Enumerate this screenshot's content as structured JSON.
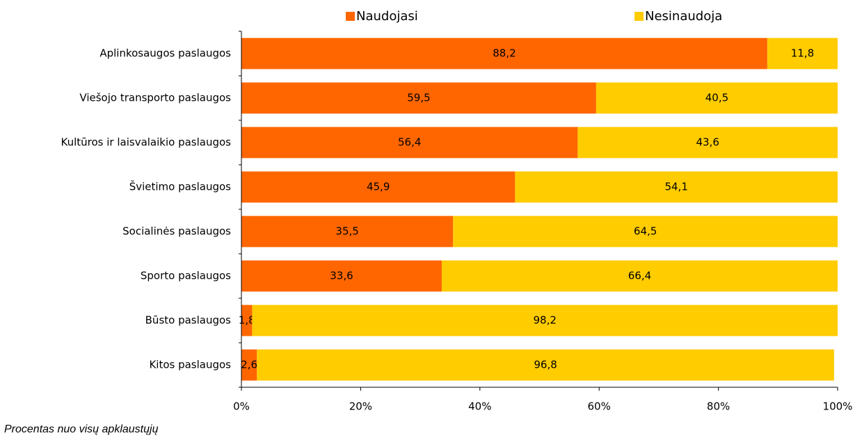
{
  "chart_data": {
    "type": "stacked_barh",
    "categories": [
      "Aplinkosaugos paslaugos",
      "Viešojo transporto paslaugos",
      "Kultūros ir laisvalaikio paslaugos",
      "Švietimo paslaugos",
      "Socialinės paslaugos",
      "Sporto paslaugos",
      "Būsto paslaugos",
      "Kitos paslaugos"
    ],
    "series": [
      {
        "name": "Naudojasi",
        "color": "#ff6600",
        "values": [
          88.2,
          59.5,
          56.4,
          45.9,
          35.5,
          33.6,
          1.8,
          2.6
        ],
        "value_labels": [
          "88,2",
          "59,5",
          "56,4",
          "45,9",
          "35,5",
          "33,6",
          "1,8",
          "2,6"
        ]
      },
      {
        "name": "Nesinaudoja",
        "color": "#ffcc00",
        "values": [
          11.8,
          40.5,
          43.6,
          54.1,
          64.5,
          66.4,
          98.2,
          96.8
        ],
        "value_labels": [
          "11,8",
          "40,5",
          "43,6",
          "54,1",
          "64,5",
          "66,4",
          "98,2",
          "96,8"
        ]
      }
    ],
    "xlim": [
      0,
      100
    ],
    "xticks": [
      {
        "value": 0,
        "label": "0%"
      },
      {
        "value": 20,
        "label": "20%"
      },
      {
        "value": 40,
        "label": "40%"
      },
      {
        "value": 60,
        "label": "60%"
      },
      {
        "value": 80,
        "label": "80%"
      },
      {
        "value": 100,
        "label": "100%"
      }
    ],
    "legend": "top",
    "note": "Procentas nuo visų apklaustųjų"
  }
}
